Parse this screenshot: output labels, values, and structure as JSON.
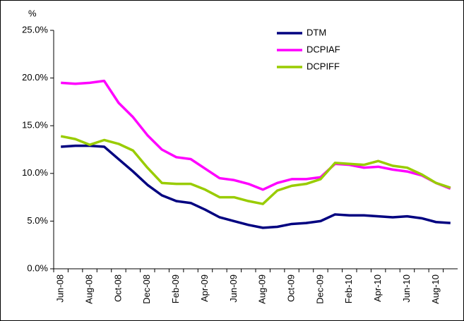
{
  "chart_data": {
    "type": "line",
    "y_label": "%",
    "categories": [
      "Jun-08",
      null,
      "Aug-08",
      null,
      "Oct-08",
      null,
      "Dec-08",
      null,
      "Feb-09",
      null,
      "Apr-09",
      null,
      "Jun-09",
      null,
      "Aug-09",
      null,
      "Oct-09",
      null,
      "Dec-09",
      null,
      "Feb-10",
      null,
      "Apr-10",
      null,
      "Jun-10",
      null,
      "Aug-10",
      null
    ],
    "series": [
      {
        "name": "DTM",
        "color": "#000080",
        "values": [
          12.8,
          12.9,
          12.9,
          12.8,
          11.5,
          10.2,
          8.8,
          7.7,
          7.1,
          6.9,
          6.2,
          5.4,
          5.0,
          4.6,
          4.3,
          4.4,
          4.7,
          4.8,
          5.0,
          5.7,
          5.6,
          5.6,
          5.5,
          5.4,
          5.5,
          5.3,
          4.9,
          4.8
        ]
      },
      {
        "name": "DCPIAF",
        "color": "#ff00ff",
        "values": [
          19.5,
          19.4,
          19.5,
          19.7,
          17.4,
          15.9,
          14.0,
          12.5,
          11.7,
          11.5,
          10.5,
          9.5,
          9.3,
          8.9,
          8.3,
          9.0,
          9.4,
          9.4,
          9.6,
          11.0,
          10.9,
          10.6,
          10.7,
          10.4,
          10.2,
          9.8,
          9.0,
          8.4
        ]
      },
      {
        "name": "DCPIFF",
        "color": "#99cc00",
        "values": [
          13.9,
          13.6,
          13.0,
          13.5,
          13.1,
          12.4,
          10.6,
          9.0,
          8.9,
          8.9,
          8.3,
          7.5,
          7.5,
          7.1,
          6.8,
          8.2,
          8.7,
          8.9,
          9.4,
          11.1,
          11.0,
          10.9,
          11.3,
          10.8,
          10.6,
          9.9,
          9.0,
          8.5
        ]
      }
    ],
    "ylim": [
      0,
      25
    ],
    "yticks": [
      {
        "value": 0,
        "label": "0.0%"
      },
      {
        "value": 5,
        "label": "5.0%"
      },
      {
        "value": 10,
        "label": "10.0%"
      },
      {
        "value": 15,
        "label": "15.0%"
      },
      {
        "value": 20,
        "label": "20.0%"
      },
      {
        "value": 25,
        "label": "25.0%"
      }
    ],
    "grid": false
  }
}
